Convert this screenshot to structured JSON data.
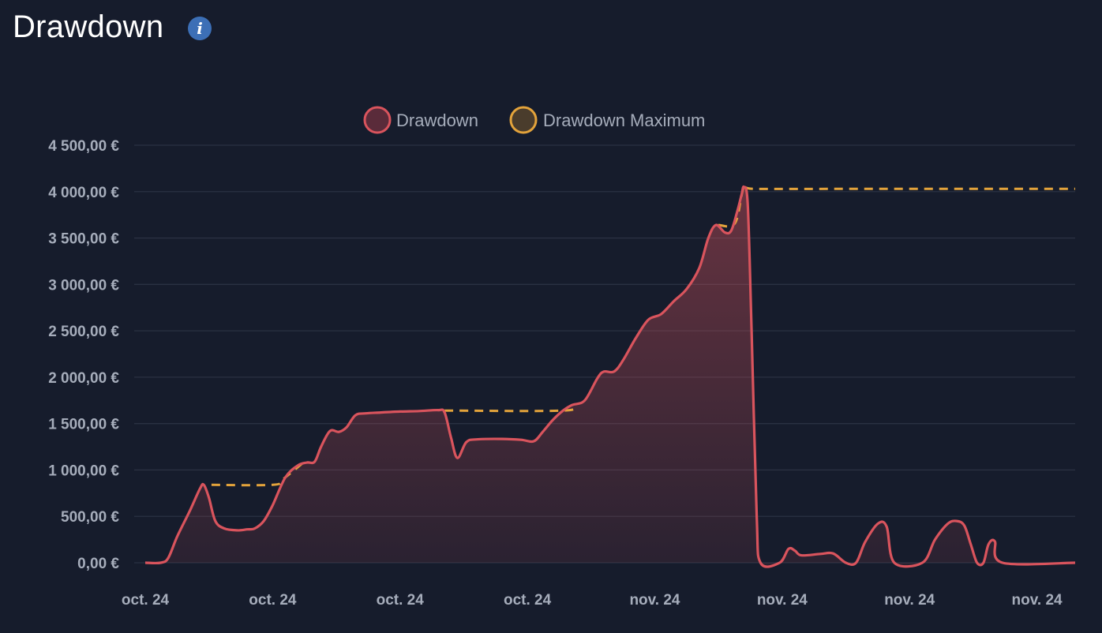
{
  "header": {
    "title": "Drawdown",
    "info_icon": "info-icon",
    "info_glyph": "i"
  },
  "chart_data": {
    "type": "line",
    "title": "Drawdown",
    "legend_position": "top-center",
    "grid": true,
    "ylim": [
      0,
      4500
    ],
    "y_ticks": [
      "0,00 €",
      "500,00 €",
      "1 000,00 €",
      "1 500,00 €",
      "2 000,00 €",
      "2 500,00 €",
      "3 000,00 €",
      "3 500,00 €",
      "4 000,00 €",
      "4 500,00 €"
    ],
    "x_ticks": [
      "oct. 24",
      "oct. 24",
      "oct. 24",
      "oct. 24",
      "nov. 24",
      "nov. 24",
      "nov. 24",
      "nov. 24"
    ],
    "colors": {
      "drawdown": "#d9545d",
      "drawdown_max": "#e3a33b",
      "background": "#161c2c",
      "grid": "#2a3142"
    },
    "series": [
      {
        "name": "Drawdown",
        "style": "solid-filled",
        "points": [
          [
            0,
            0
          ],
          [
            0.12,
            0
          ],
          [
            0.18,
            50
          ],
          [
            0.25,
            280
          ],
          [
            0.35,
            560
          ],
          [
            0.43,
            800
          ],
          [
            0.46,
            840
          ],
          [
            0.5,
            700
          ],
          [
            0.55,
            450
          ],
          [
            0.62,
            370
          ],
          [
            0.72,
            350
          ],
          [
            0.8,
            360
          ],
          [
            0.86,
            370
          ],
          [
            0.93,
            450
          ],
          [
            1.0,
            620
          ],
          [
            1.1,
            920
          ],
          [
            1.2,
            1050
          ],
          [
            1.27,
            1080
          ],
          [
            1.33,
            1090
          ],
          [
            1.38,
            1250
          ],
          [
            1.45,
            1420
          ],
          [
            1.52,
            1410
          ],
          [
            1.58,
            1460
          ],
          [
            1.65,
            1590
          ],
          [
            1.73,
            1610
          ],
          [
            1.85,
            1620
          ],
          [
            2.0,
            1630
          ],
          [
            2.15,
            1635
          ],
          [
            2.3,
            1645
          ],
          [
            2.35,
            1620
          ],
          [
            2.4,
            1350
          ],
          [
            2.45,
            1130
          ],
          [
            2.52,
            1300
          ],
          [
            2.6,
            1330
          ],
          [
            2.8,
            1335
          ],
          [
            2.95,
            1325
          ],
          [
            3.05,
            1310
          ],
          [
            3.12,
            1410
          ],
          [
            3.2,
            1540
          ],
          [
            3.28,
            1640
          ],
          [
            3.35,
            1700
          ],
          [
            3.45,
            1750
          ],
          [
            3.55,
            1990
          ],
          [
            3.6,
            2060
          ],
          [
            3.68,
            2060
          ],
          [
            3.75,
            2180
          ],
          [
            3.85,
            2420
          ],
          [
            3.95,
            2620
          ],
          [
            4.05,
            2680
          ],
          [
            4.15,
            2820
          ],
          [
            4.25,
            2950
          ],
          [
            4.35,
            3180
          ],
          [
            4.42,
            3500
          ],
          [
            4.48,
            3640
          ],
          [
            4.55,
            3560
          ],
          [
            4.6,
            3580
          ],
          [
            4.65,
            3800
          ],
          [
            4.68,
            3960
          ],
          [
            4.7,
            4050
          ],
          [
            4.73,
            3850
          ],
          [
            4.76,
            2500
          ],
          [
            4.8,
            500
          ],
          [
            4.83,
            0
          ],
          [
            4.98,
            0
          ],
          [
            5.05,
            150
          ],
          [
            5.1,
            130
          ],
          [
            5.15,
            80
          ],
          [
            5.3,
            95
          ],
          [
            5.4,
            100
          ],
          [
            5.5,
            0
          ],
          [
            5.58,
            0
          ],
          [
            5.65,
            220
          ],
          [
            5.75,
            420
          ],
          [
            5.82,
            390
          ],
          [
            5.88,
            0
          ],
          [
            6.1,
            0
          ],
          [
            6.2,
            250
          ],
          [
            6.3,
            420
          ],
          [
            6.37,
            450
          ],
          [
            6.43,
            400
          ],
          [
            6.48,
            200
          ],
          [
            6.53,
            0
          ],
          [
            6.58,
            0
          ],
          [
            6.62,
            200
          ],
          [
            6.67,
            230
          ],
          [
            6.73,
            0
          ],
          [
            7.3,
            0
          ]
        ]
      },
      {
        "name": "Drawdown Maximum",
        "style": "dashed",
        "segments": [
          [
            [
              0.52,
              840
            ],
            [
              1.0,
              840
            ],
            [
              1.08,
              900
            ],
            [
              1.25,
              1090
            ]
          ],
          [
            [
              2.35,
              1640
            ],
            [
              3.28,
              1640
            ],
            [
              3.35,
              1700
            ]
          ],
          [
            [
              4.5,
              3640
            ],
            [
              4.63,
              3660
            ],
            [
              4.7,
              4050
            ],
            [
              4.78,
              4030
            ],
            [
              5.5,
              4030
            ],
            [
              7.3,
              4030
            ]
          ]
        ]
      }
    ]
  }
}
